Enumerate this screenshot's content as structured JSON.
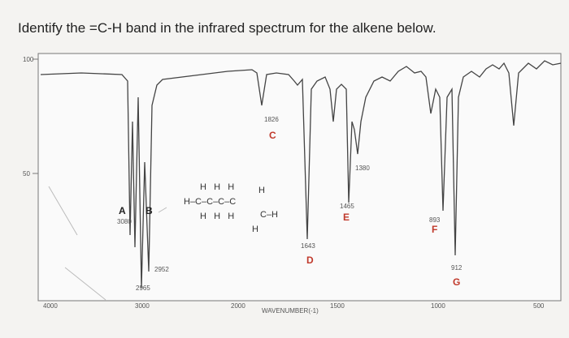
{
  "question": "Identify the =C-H band in the infrared spectrum for the alkene below.",
  "spectrum": {
    "y_axis_labels": [
      "100",
      "50"
    ],
    "x_axis_labels": [
      "4000",
      "3000",
      "2000",
      "1500",
      "1000",
      "500"
    ],
    "x_axis_title": "WAVENUMBER(-1)",
    "peaks": [
      {
        "letter": "A",
        "wavenumber": "3080"
      },
      {
        "letter": "B",
        "wavenumber": "2952"
      },
      {
        "letter": "C",
        "wavenumber": "1826"
      },
      {
        "letter": "D",
        "wavenumber": "1643"
      },
      {
        "letter": "E",
        "wavenumber": "1465"
      },
      {
        "letter": "F",
        "wavenumber": "893"
      },
      {
        "letter": "G",
        "wavenumber": "912"
      }
    ],
    "other_labels": [
      "2965",
      "1380"
    ]
  },
  "molecule": {
    "rows": [
      "H   H   H",
      "H–C–C–C–C",
      "H   H   H",
      "H",
      "C–H",
      "H"
    ]
  }
}
